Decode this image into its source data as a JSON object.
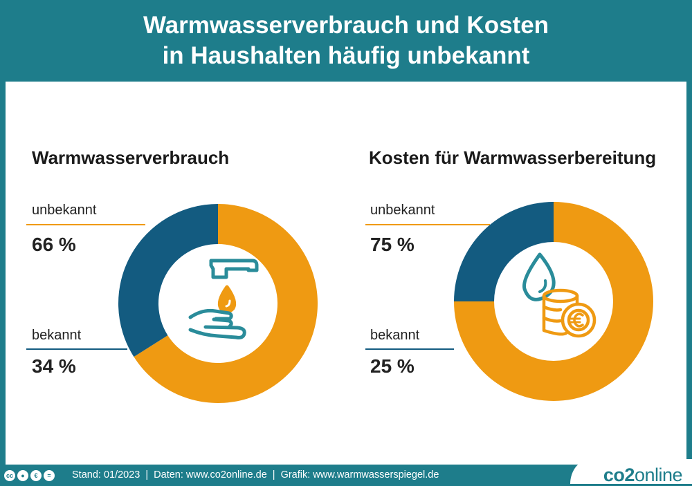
{
  "header": {
    "title_line1": "Warmwasserverbrauch und Kosten",
    "title_line2": "in Haushalten häufig unbekannt"
  },
  "colors": {
    "teal": "#1e7d8b",
    "orange": "#ef9a12",
    "blue": "#135b80",
    "icon_teal": "#2a8c9a"
  },
  "chart_data": [
    {
      "type": "pie",
      "title": "Warmwasserverbrauch",
      "categories": [
        "unbekannt",
        "bekannt"
      ],
      "values": [
        66,
        34
      ],
      "labels": [
        "66 %",
        "34 %"
      ],
      "colors": [
        "#ef9a12",
        "#135b80"
      ],
      "icon": "hand-with-faucet-drop-icon"
    },
    {
      "type": "pie",
      "title": "Kosten für Warmwasserbereitung",
      "categories": [
        "unbekannt",
        "bekannt"
      ],
      "values": [
        75,
        25
      ],
      "labels": [
        "75 %",
        "25 %"
      ],
      "colors": [
        "#ef9a12",
        "#135b80"
      ],
      "icon": "water-drop-euro-coins-icon"
    }
  ],
  "footer": {
    "license_icons": [
      "cc-icon",
      "by-icon",
      "nc-icon",
      "nd-icon"
    ],
    "stand": "Stand: 01/2023",
    "daten": "Daten: www.co2online.de",
    "grafik": "Grafik: www.warmwasserspiegel.de",
    "separator": "|"
  },
  "logo": {
    "part1": "co2",
    "part2": "online"
  }
}
